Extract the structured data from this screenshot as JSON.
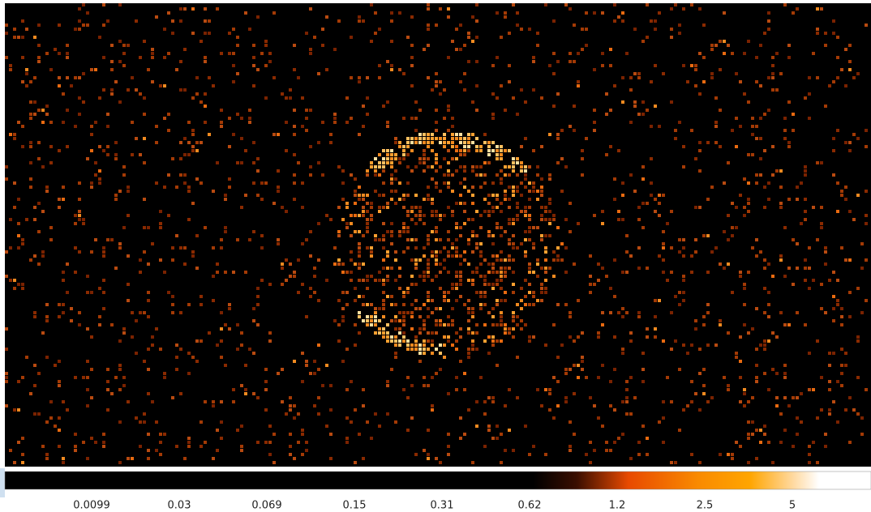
{
  "colorbar": {
    "labels": [
      "0.0099",
      "0.03",
      "0.069",
      "0.15",
      "0.31",
      "0.62",
      "1.2",
      "2.5",
      "5"
    ]
  }
}
